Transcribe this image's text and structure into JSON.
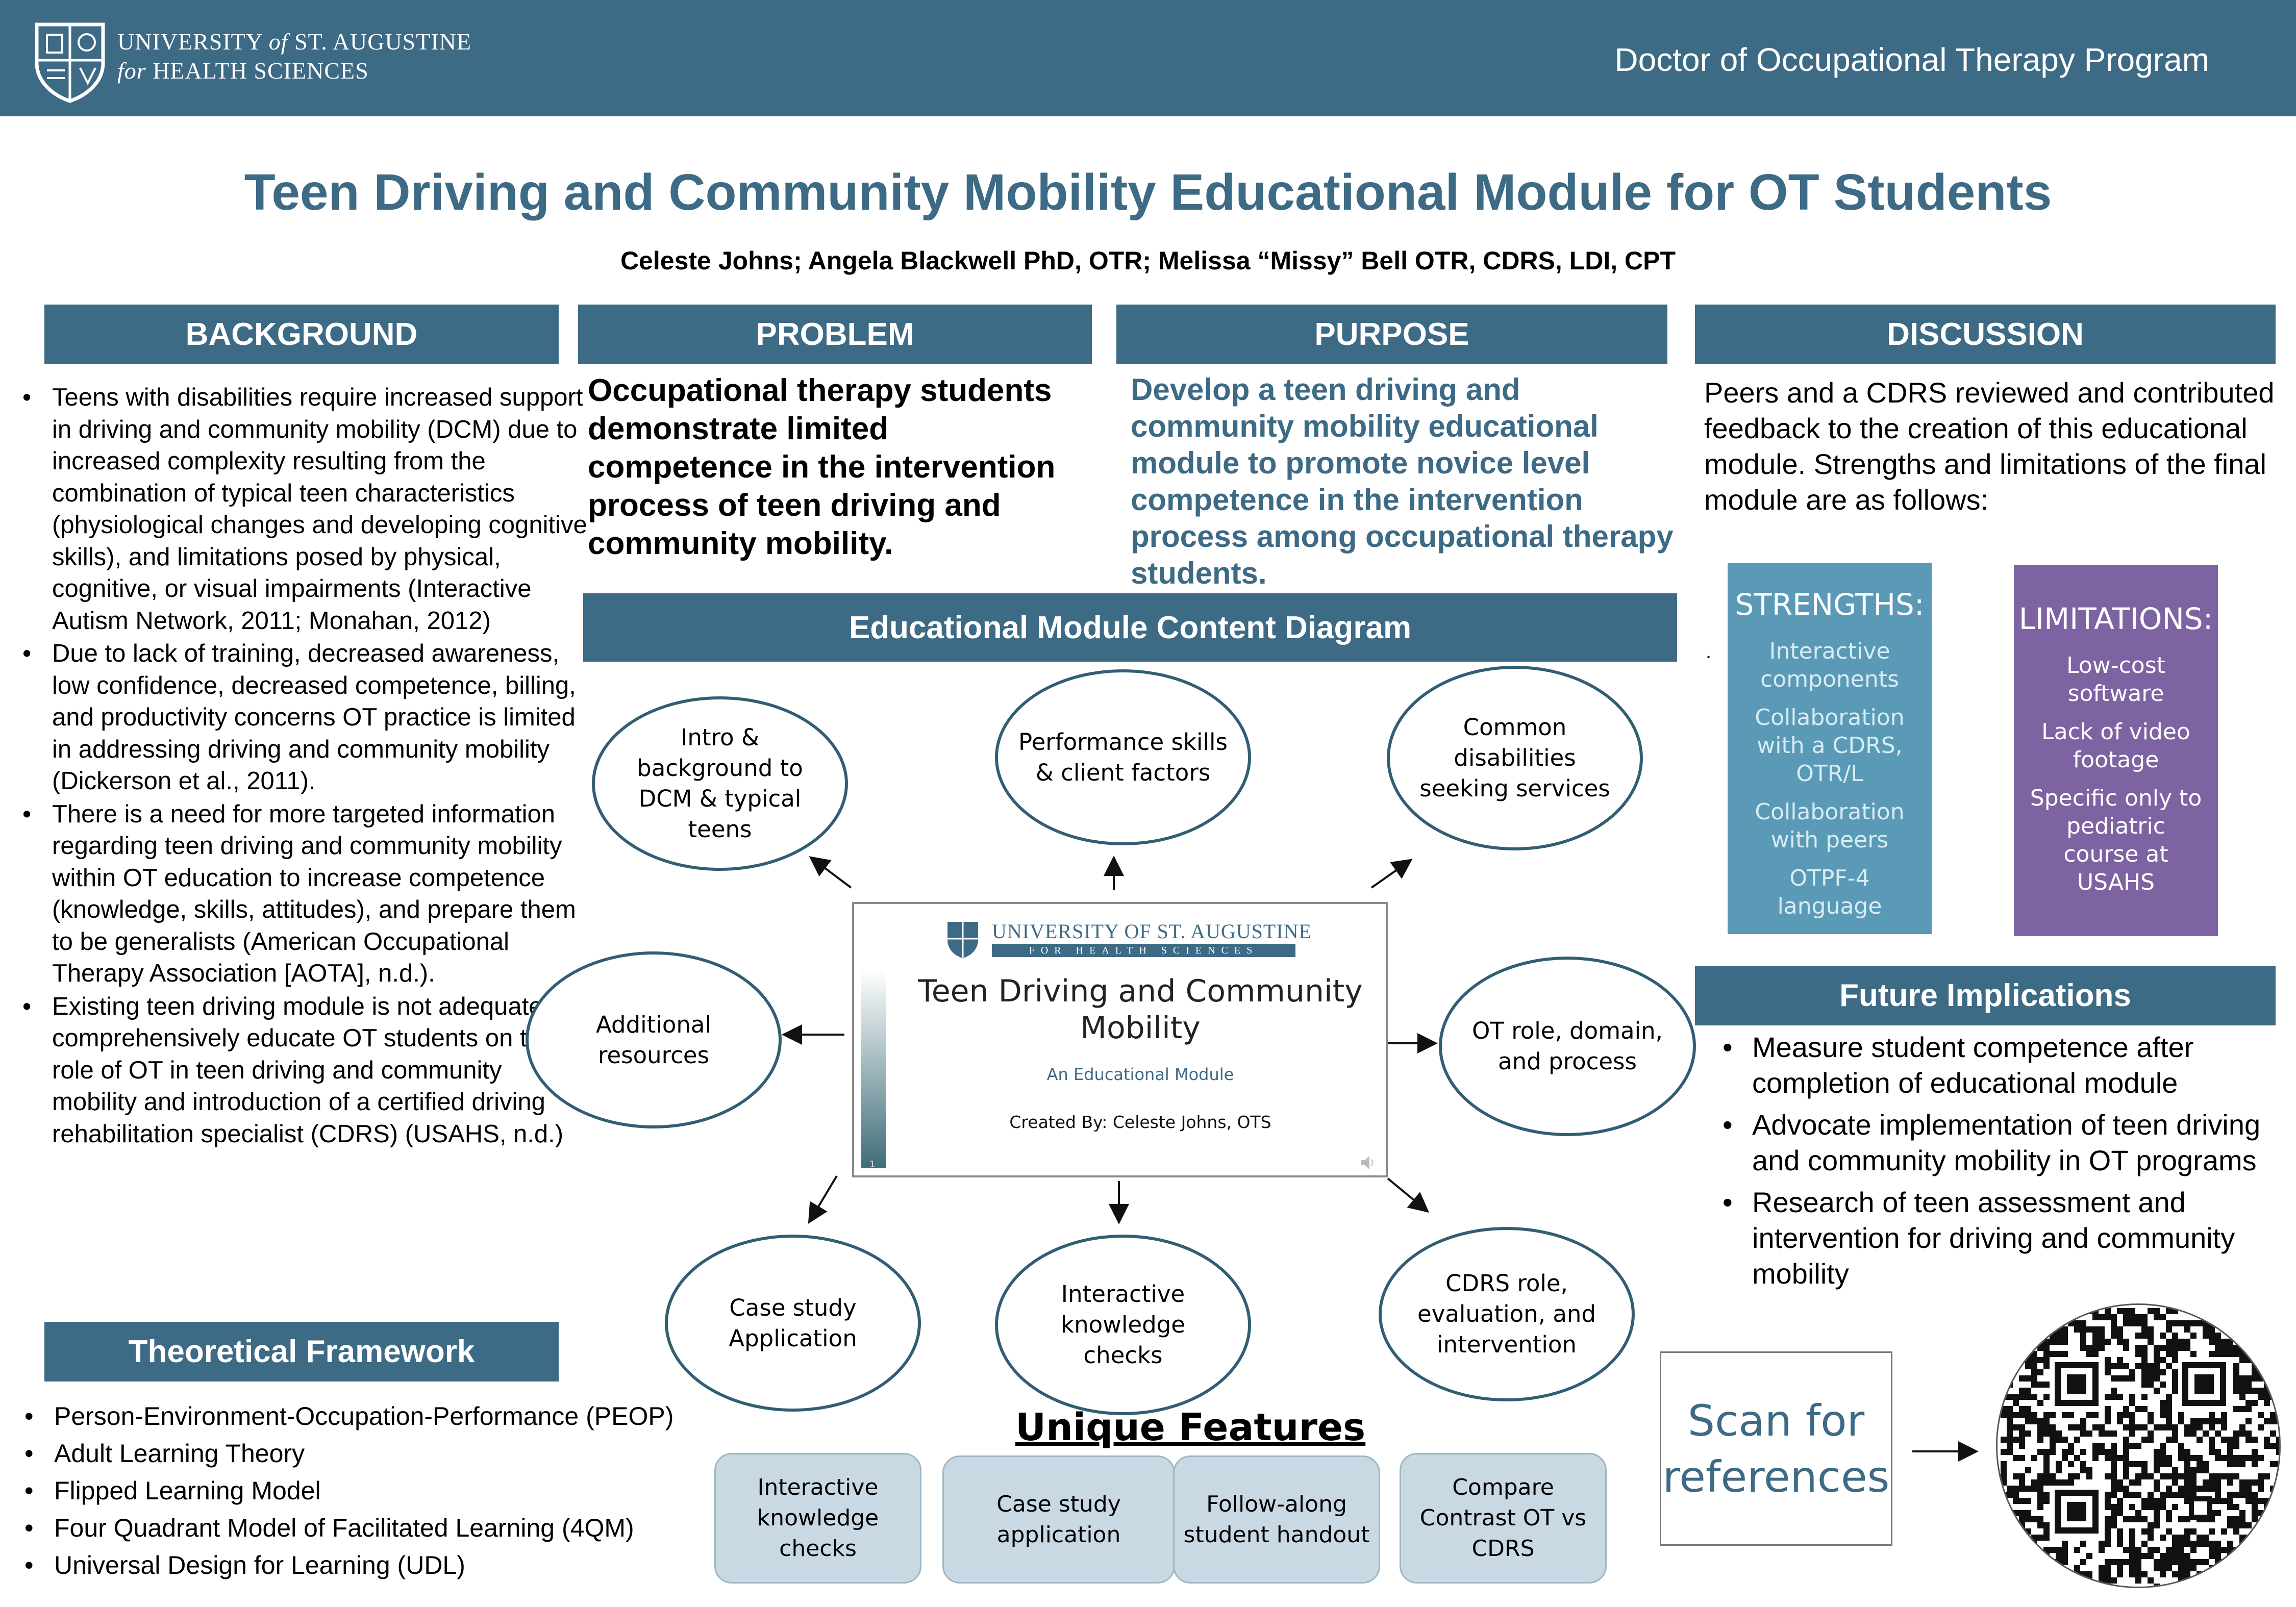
{
  "header": {
    "logo_line1_a": "UNIVERSITY",
    "logo_line1_of": "of",
    "logo_line1_b": "ST. AUGUSTINE",
    "logo_line2_for": "for",
    "logo_line2_b": "HEALTH SCIENCES",
    "program": "Doctor of Occupational Therapy Program"
  },
  "title": "Teen Driving and Community Mobility Educational Module for OT Students",
  "authors": "Celeste Johns; Angela Blackwell PhD, OTR; Melissa “Missy” Bell OTR, CDRS, LDI, CPT",
  "background": {
    "heading": "BACKGROUND",
    "bullets": [
      "Teens with disabilities require increased support in driving and community mobility (DCM) due to increased complexity resulting from the combination of typical teen characteristics (physiological changes and developing cognitive skills), and limitations posed by physical, cognitive, or visual impairments (Interactive Autism Network, 2011; Monahan, 2012)",
      "Due to lack of training, decreased awareness, low confidence, decreased competence, billing, and productivity concerns OT practice is limited in addressing driving and community mobility (Dickerson et al., 2011).",
      "There is a need for more targeted information regarding teen driving and community mobility within OT education to increase competence (knowledge, skills, attitudes), and prepare them to be generalists (American Occupational Therapy Association [AOTA], n.d.).",
      "Existing teen driving module is not adequate to comprehensively educate OT students on the role of OT in teen driving and community mobility and introduction of a certified driving rehabilitation specialist (CDRS) (USAHS, n.d.)"
    ]
  },
  "theoretical_framework": {
    "heading": "Theoretical Framework",
    "bullets": [
      "Person-Environment-Occupation-Performance (PEOP)",
      "Adult Learning Theory",
      "Flipped Learning Model",
      "Four Quadrant Model of Facilitated Learning (4QM)",
      "Universal Design for Learning (UDL)"
    ]
  },
  "problem": {
    "heading": "PROBLEM",
    "text": "Occupational therapy students demonstrate limited competence in the intervention process of teen driving and community mobility."
  },
  "purpose": {
    "heading": "PURPOSE",
    "text": "Develop a teen driving and community mobility educational module to promote novice level competence in the intervention process among occupational therapy students."
  },
  "diagram": {
    "heading": "Educational Module Content Diagram",
    "nodes": {
      "intro": "Intro & background to DCM & typical teens",
      "performance": "Performance skills & client factors",
      "disabilities": "Common disabilities seeking services",
      "resources": "Additional resources",
      "ot_role": "OT role, domain, and process",
      "case_study": "Case study Application",
      "knowledge": "Interactive knowledge checks",
      "cdrs": "CDRS role, evaluation, and intervention"
    },
    "slide": {
      "univ": "UNIVERSITY OF ST. AUGUSTINE",
      "univ_sub": "FOR HEALTH SCIENCES",
      "title": "Teen Driving and Community Mobility",
      "subtitle": "An Educational Module",
      "created": "Created By: Celeste Johns, OTS",
      "page": "1"
    }
  },
  "unique_features": {
    "heading": "Unique Features",
    "items": [
      "Interactive knowledge checks",
      "Case study application",
      "Follow-along student handout",
      "Compare Contrast OT vs CDRS"
    ]
  },
  "discussion": {
    "heading": "DISCUSSION",
    "text": "Peers and a CDRS reviewed and contributed feedback to the creation of this educational module. Strengths and limitations of the final module are as follows:",
    "dot": ".",
    "strengths": {
      "heading": "STRENGTHS:",
      "items": [
        "Interactive components",
        "Collaboration with a CDRS, OTR/L",
        "Collaboration with peers",
        "OTPF-4 language"
      ]
    },
    "limitations": {
      "heading": "LIMITATIONS:",
      "items": [
        "Low-cost software",
        "Lack of video footage",
        "Specific only to pediatric course at USAHS"
      ]
    }
  },
  "future": {
    "heading": "Future Implications",
    "bullets": [
      "Measure student competence after completion of educational module",
      "Advocate implementation of teen driving and community mobility in OT programs",
      "Research of teen assessment and intervention for driving and community mobility"
    ]
  },
  "scan": "Scan for references",
  "colors": {
    "brand": "#3d6a85",
    "strengths_bg": "#5b9ab6",
    "limitations_bg": "#7e63a3",
    "feature_bg": "#c8d9e3"
  }
}
